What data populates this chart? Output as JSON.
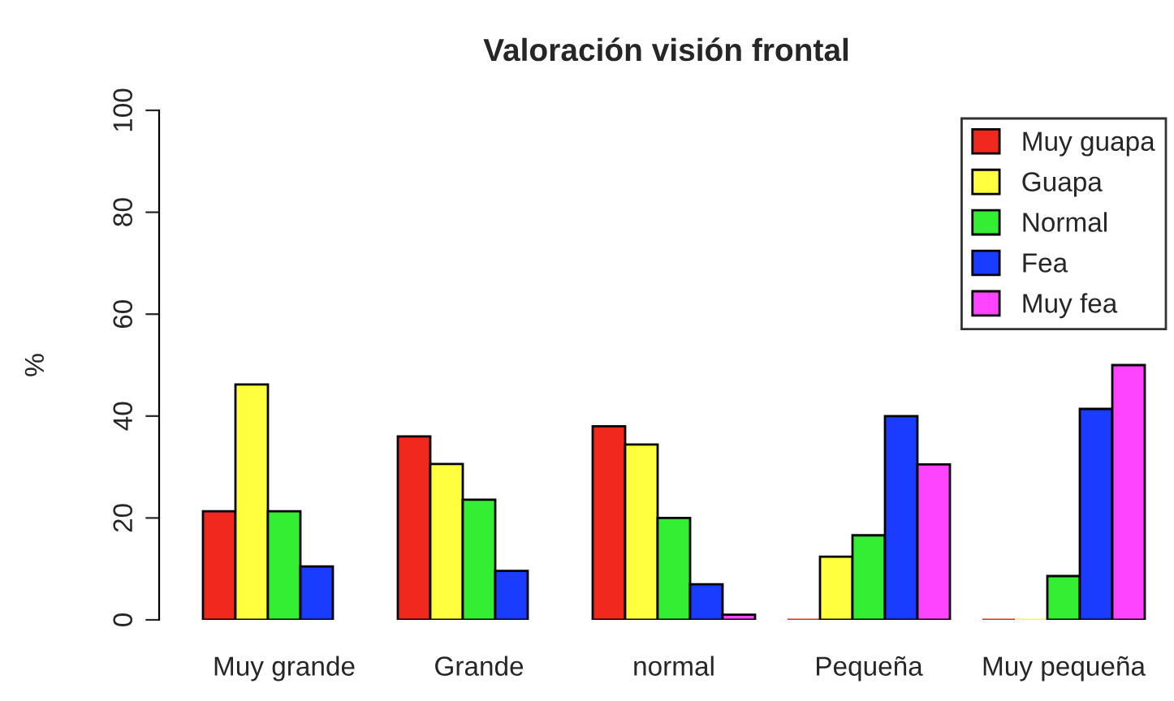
{
  "chart_data": {
    "type": "bar",
    "title": "Valoración visión frontal",
    "ylabel": "%",
    "categories": [
      "Muy grande",
      "Grande",
      "normal",
      "Pequeña",
      "Muy pequeña"
    ],
    "series": [
      {
        "name": "Muy guapa",
        "color": "#f0281e",
        "values": [
          21.3,
          36,
          38,
          0,
          0
        ]
      },
      {
        "name": "Guapa",
        "color": "#ffff40",
        "values": [
          46.2,
          30.6,
          34.4,
          12.4,
          0
        ]
      },
      {
        "name": "Normal",
        "color": "#33ee33",
        "values": [
          21.3,
          23.6,
          20,
          16.6,
          8.6
        ]
      },
      {
        "name": "Fea",
        "color": "#1a3cff",
        "values": [
          10.5,
          9.6,
          7,
          40,
          41.4
        ]
      },
      {
        "name": "Muy fea",
        "color": "#ff44ff",
        "values": [
          null,
          null,
          1,
          30.5,
          50
        ]
      }
    ],
    "ylim": [
      0,
      100
    ],
    "yticks": [
      0,
      20,
      40,
      60,
      80,
      100
    ],
    "grid": false,
    "legend": "top right"
  }
}
